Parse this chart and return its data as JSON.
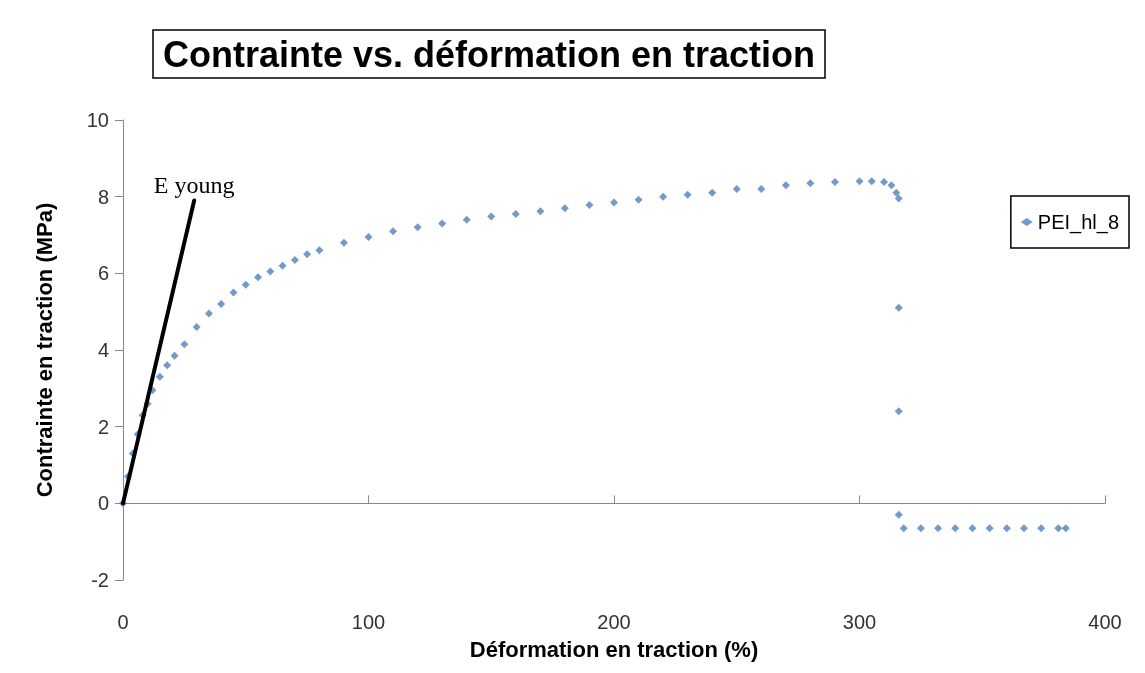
{
  "chart_data": {
    "type": "scatter",
    "title": "Contrainte vs. déformation en traction",
    "xlabel": "Déformation en traction (%)",
    "ylabel": "Contrainte en traction (MPa)",
    "xlim": [
      0,
      400
    ],
    "xticks": [
      0,
      100,
      200,
      300,
      400
    ],
    "ylim": [
      -2,
      10
    ],
    "yticks": [
      -2,
      0,
      2,
      4,
      6,
      8,
      10
    ],
    "legend": "right",
    "marker": "diamond",
    "annotations": [
      {
        "text": "E young",
        "x": 29,
        "y": 7.9
      }
    ],
    "series": [
      {
        "name": "PEI_hl_8",
        "color": "#4f81bd",
        "x": [
          0,
          2,
          4,
          6,
          8,
          10,
          12,
          15,
          18,
          21,
          25,
          30,
          35,
          40,
          45,
          50,
          55,
          60,
          65,
          70,
          75,
          80,
          90,
          100,
          110,
          120,
          130,
          140,
          150,
          160,
          170,
          180,
          190,
          200,
          210,
          220,
          230,
          240,
          250,
          260,
          270,
          280,
          290,
          300,
          305,
          310,
          313,
          315,
          316,
          316,
          316,
          316,
          318,
          325,
          332,
          339,
          346,
          353,
          360,
          367,
          374,
          381,
          384
        ],
        "values": [
          0,
          0.7,
          1.3,
          1.8,
          2.3,
          2.6,
          2.95,
          3.3,
          3.6,
          3.85,
          4.15,
          4.6,
          4.95,
          5.2,
          5.5,
          5.7,
          5.9,
          6.05,
          6.2,
          6.35,
          6.5,
          6.6,
          6.8,
          6.95,
          7.1,
          7.2,
          7.3,
          7.4,
          7.48,
          7.55,
          7.62,
          7.7,
          7.78,
          7.85,
          7.92,
          8.0,
          8.05,
          8.1,
          8.2,
          8.2,
          8.3,
          8.35,
          8.38,
          8.4,
          8.4,
          8.38,
          8.3,
          8.1,
          7.95,
          5.1,
          2.4,
          -0.3,
          -0.65,
          -0.65,
          -0.65,
          -0.65,
          -0.65,
          -0.65,
          -0.65,
          -0.65,
          -0.65,
          -0.65,
          -0.65
        ]
      },
      {
        "type": "line",
        "marker": "none",
        "color": "#000000",
        "x": [
          0,
          29
        ],
        "values": [
          0,
          7.9
        ]
      }
    ]
  }
}
